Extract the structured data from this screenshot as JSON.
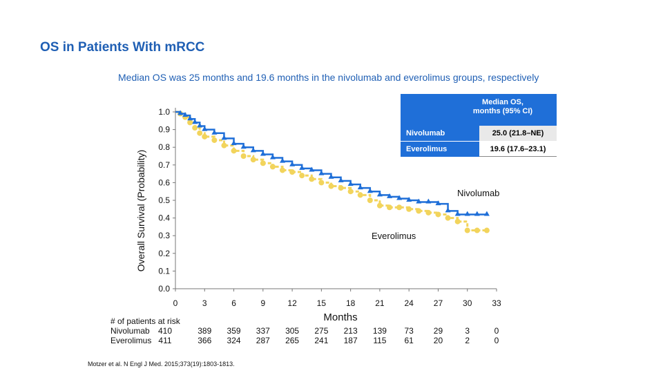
{
  "slide": {
    "title": "OS in Patients With mRCC",
    "subtitle": "Median OS was 25 months and 19.6 months in the nivolumab and everolimus groups, respectively",
    "citation": "Motzer et al. N Engl J Med. 2015;373(19):1803-1813."
  },
  "median_table": {
    "header": "Median OS, months (95% CI)",
    "rows": [
      {
        "arm": "Nivolumab",
        "value": "25.0 (21.8–NE)"
      },
      {
        "arm": "Everolimus",
        "value": "19.6 (17.6–23.1)"
      }
    ]
  },
  "risk_table": {
    "label": "# of patients at risk",
    "rows": [
      {
        "arm": "Nivolumab",
        "counts": [
          "410",
          "389",
          "359",
          "337",
          "305",
          "275",
          "213",
          "139",
          "73",
          "29",
          "3",
          "0"
        ]
      },
      {
        "arm": "Everolimus",
        "counts": [
          "411",
          "366",
          "324",
          "287",
          "265",
          "241",
          "187",
          "115",
          "61",
          "20",
          "2",
          "0"
        ]
      }
    ]
  },
  "colors": {
    "nivolumab": "#1f6fd8",
    "everolimus": "#f2d45c",
    "title": "#1f5fb4"
  },
  "chart_data": {
    "type": "line",
    "title": "",
    "xlabel": "Months",
    "ylabel": "Overall Survival (Probability)",
    "xlim": [
      0,
      33
    ],
    "ylim": [
      0,
      1.0
    ],
    "xticks": [
      "0",
      "3",
      "6",
      "9",
      "12",
      "15",
      "18",
      "21",
      "24",
      "27",
      "30",
      "33"
    ],
    "yticks": [
      "0.0",
      "0.1",
      "0.2",
      "0.3",
      "0.4",
      "0.5",
      "0.6",
      "0.7",
      "0.8",
      "0.9",
      "1.0"
    ],
    "series": [
      {
        "name": "Nivolumab",
        "style": "solid",
        "x": [
          0,
          0.5,
          1,
          1.5,
          2,
          2.5,
          3,
          4,
          5,
          6,
          7,
          8,
          9,
          10,
          11,
          12,
          13,
          14,
          15,
          16,
          17,
          18,
          19,
          20,
          21,
          22,
          23,
          24,
          25,
          26,
          27,
          28,
          29,
          30,
          31,
          32
        ],
        "y": [
          1.0,
          0.99,
          0.98,
          0.96,
          0.94,
          0.92,
          0.9,
          0.88,
          0.85,
          0.82,
          0.8,
          0.78,
          0.76,
          0.74,
          0.72,
          0.7,
          0.68,
          0.67,
          0.65,
          0.63,
          0.61,
          0.59,
          0.57,
          0.55,
          0.53,
          0.52,
          0.51,
          0.5,
          0.49,
          0.49,
          0.48,
          0.44,
          0.42,
          0.42,
          0.42,
          0.42
        ]
      },
      {
        "name": "Everolimus",
        "style": "dashed",
        "x": [
          0,
          0.5,
          1,
          1.5,
          2,
          2.5,
          3,
          4,
          5,
          6,
          7,
          8,
          9,
          10,
          11,
          12,
          13,
          14,
          15,
          16,
          17,
          18,
          19,
          20,
          21,
          22,
          23,
          24,
          25,
          26,
          27,
          28,
          29,
          30,
          31,
          32
        ],
        "y": [
          1.0,
          0.99,
          0.97,
          0.94,
          0.91,
          0.88,
          0.86,
          0.84,
          0.81,
          0.78,
          0.75,
          0.73,
          0.71,
          0.69,
          0.67,
          0.66,
          0.64,
          0.62,
          0.6,
          0.58,
          0.57,
          0.55,
          0.53,
          0.5,
          0.47,
          0.46,
          0.46,
          0.45,
          0.44,
          0.43,
          0.42,
          0.4,
          0.38,
          0.33,
          0.33,
          0.33
        ]
      }
    ],
    "annotations": [
      "Nivolumab",
      "Everolimus"
    ]
  }
}
